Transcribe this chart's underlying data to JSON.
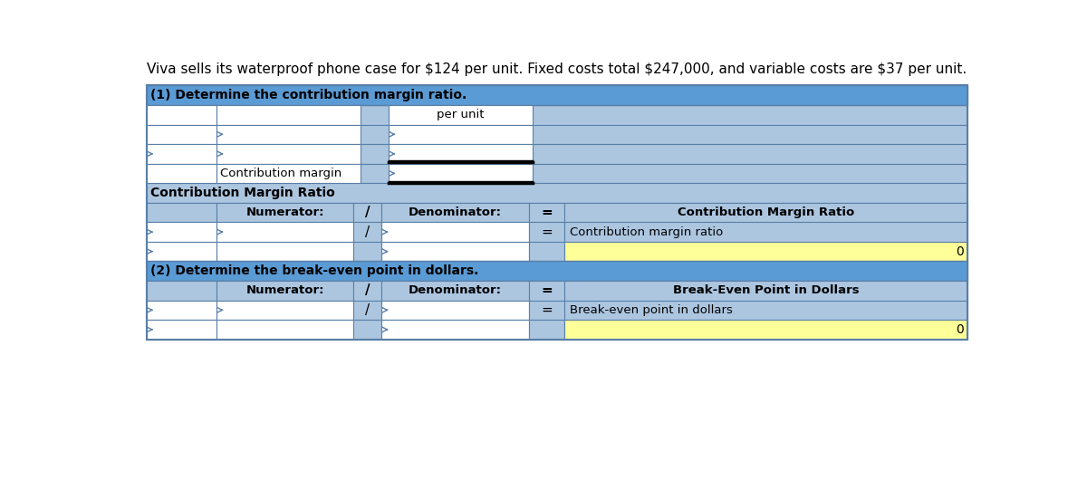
{
  "title_text": "Viva sells its waterproof phone case for $124 per unit. Fixed costs total $247,000, and variable costs are $37 per unit.",
  "bg_color": "#ffffff",
  "header_blue": "#5b9bd5",
  "light_blue": "#adc6e0",
  "cell_white": "#ffffff",
  "cell_yellow": "#ffff99",
  "border_color": "#5a7fa8",
  "section1_header": "(1) Determine the contribution margin ratio.",
  "section2_header": "(2) Determine the break-even point in dollars.",
  "per_unit_label": "per unit",
  "contribution_margin_label": "Contribution margin",
  "cm_ratio_section_label": "Contribution Margin Ratio",
  "numerator_label": "Numerator:",
  "denominator_label": "Denominator:",
  "equals_sign": "=",
  "slash_sign": "/",
  "cm_ratio_result_label": "Contribution Margin Ratio",
  "cm_ratio_value_label": "Contribution margin ratio",
  "bep_result_label": "Break-Even Point in Dollars",
  "bep_value_label": "Break-even point in dollars",
  "result_value": "0"
}
